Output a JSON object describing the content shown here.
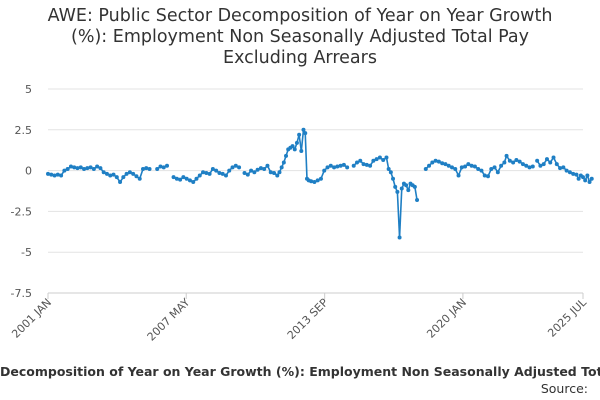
{
  "chart_data": {
    "type": "scatter",
    "title_lines": [
      "AWE: Public Sector Decomposition of Year on Year Growth",
      "(%): Employment Non Seasonally Adjusted Total Pay",
      "Excluding Arrears"
    ],
    "ylim": [
      -7.5,
      5
    ],
    "y_ticks": [
      "5",
      "2.5",
      "0",
      "-2.5",
      "-5",
      "-7.5"
    ],
    "x_ticks": [
      "2001 JAN",
      "2007 MAY",
      "2013 SEP",
      "2020 JAN",
      "2025 JUL"
    ],
    "x_tick_years": [
      2001.0,
      2007.33,
      2013.67,
      2020.0,
      2025.5
    ],
    "xlim": [
      2001.0,
      2025.5
    ],
    "series_color": "#1f7fc4",
    "legend_label": "Decomposition of Year on Year Growth (%): Employment Non Seasonally Adjusted Total",
    "source_label": "Source:",
    "series": [
      {
        "name": "Employment Non Seasonally Adjusted Total Pay Excluding Arrears",
        "points": [
          [
            2001.0,
            -0.2
          ],
          [
            2001.15,
            -0.25
          ],
          [
            2001.3,
            -0.3
          ],
          [
            2001.45,
            -0.25
          ],
          [
            2001.6,
            -0.3
          ],
          [
            2001.75,
            0.0
          ],
          [
            2001.9,
            0.1
          ],
          [
            2002.05,
            0.25
          ],
          [
            2002.2,
            0.2
          ],
          [
            2002.35,
            0.15
          ],
          [
            2002.5,
            0.2
          ],
          [
            2002.65,
            0.1
          ],
          [
            2002.8,
            0.15
          ],
          [
            2002.95,
            0.2
          ],
          [
            2003.1,
            0.1
          ],
          [
            2003.25,
            0.25
          ],
          [
            2003.4,
            0.15
          ],
          [
            2003.55,
            -0.1
          ],
          [
            2003.7,
            -0.2
          ],
          [
            2003.85,
            -0.3
          ],
          [
            2004.0,
            -0.25
          ],
          [
            2004.15,
            -0.4
          ],
          [
            2004.3,
            -0.7
          ],
          [
            2004.45,
            -0.4
          ],
          [
            2004.6,
            -0.2
          ],
          [
            2004.75,
            -0.1
          ],
          [
            2004.9,
            -0.2
          ],
          [
            2005.05,
            -0.35
          ],
          [
            2005.2,
            -0.5
          ],
          [
            2005.35,
            0.1
          ],
          [
            2005.5,
            0.15
          ],
          [
            2005.65,
            0.1
          ],
          [
            2006.0,
            0.1
          ],
          [
            2006.15,
            0.25
          ],
          [
            2006.3,
            0.2
          ],
          [
            2006.45,
            0.3
          ],
          [
            2006.75,
            -0.4
          ],
          [
            2006.9,
            -0.5
          ],
          [
            2007.05,
            -0.55
          ],
          [
            2007.2,
            -0.4
          ],
          [
            2007.35,
            -0.5
          ],
          [
            2007.5,
            -0.6
          ],
          [
            2007.65,
            -0.7
          ],
          [
            2007.8,
            -0.5
          ],
          [
            2007.95,
            -0.3
          ],
          [
            2008.1,
            -0.1
          ],
          [
            2008.25,
            -0.15
          ],
          [
            2008.4,
            -0.2
          ],
          [
            2008.55,
            0.1
          ],
          [
            2008.7,
            0.0
          ],
          [
            2008.85,
            -0.15
          ],
          [
            2009.0,
            -0.2
          ],
          [
            2009.15,
            -0.3
          ],
          [
            2009.3,
            0.0
          ],
          [
            2009.45,
            0.2
          ],
          [
            2009.6,
            0.3
          ],
          [
            2009.75,
            0.2
          ],
          [
            2010.0,
            -0.15
          ],
          [
            2010.15,
            -0.25
          ],
          [
            2010.3,
            0.0
          ],
          [
            2010.45,
            -0.1
          ],
          [
            2010.6,
            0.05
          ],
          [
            2010.75,
            0.15
          ],
          [
            2010.9,
            0.1
          ],
          [
            2011.05,
            0.3
          ],
          [
            2011.2,
            -0.1
          ],
          [
            2011.35,
            -0.15
          ],
          [
            2011.5,
            -0.3
          ],
          [
            2011.6,
            -0.1
          ],
          [
            2011.7,
            0.2
          ],
          [
            2011.8,
            0.5
          ],
          [
            2011.9,
            0.9
          ],
          [
            2012.0,
            1.3
          ],
          [
            2012.1,
            1.4
          ],
          [
            2012.2,
            1.5
          ],
          [
            2012.3,
            1.3
          ],
          [
            2012.4,
            1.7
          ],
          [
            2012.5,
            2.2
          ],
          [
            2012.6,
            1.2
          ],
          [
            2012.7,
            2.5
          ],
          [
            2012.78,
            2.3
          ],
          [
            2012.86,
            -0.5
          ],
          [
            2012.94,
            -0.6
          ],
          [
            2013.05,
            -0.65
          ],
          [
            2013.2,
            -0.7
          ],
          [
            2013.35,
            -0.6
          ],
          [
            2013.5,
            -0.5
          ],
          [
            2013.65,
            0.0
          ],
          [
            2013.8,
            0.2
          ],
          [
            2013.95,
            0.3
          ],
          [
            2014.1,
            0.2
          ],
          [
            2014.25,
            0.25
          ],
          [
            2014.4,
            0.3
          ],
          [
            2014.55,
            0.35
          ],
          [
            2014.7,
            0.2
          ],
          [
            2015.0,
            0.3
          ],
          [
            2015.15,
            0.5
          ],
          [
            2015.3,
            0.6
          ],
          [
            2015.45,
            0.4
          ],
          [
            2015.6,
            0.35
          ],
          [
            2015.75,
            0.3
          ],
          [
            2015.9,
            0.6
          ],
          [
            2016.05,
            0.7
          ],
          [
            2016.2,
            0.8
          ],
          [
            2016.35,
            0.65
          ],
          [
            2016.5,
            0.8
          ],
          [
            2016.6,
            0.1
          ],
          [
            2016.7,
            -0.1
          ],
          [
            2016.8,
            -0.5
          ],
          [
            2016.9,
            -1.0
          ],
          [
            2017.0,
            -1.3
          ],
          [
            2017.1,
            -4.1
          ],
          [
            2017.2,
            -1.1
          ],
          [
            2017.3,
            -0.8
          ],
          [
            2017.4,
            -0.9
          ],
          [
            2017.5,
            -1.2
          ],
          [
            2017.6,
            -0.8
          ],
          [
            2017.7,
            -0.9
          ],
          [
            2017.8,
            -1.0
          ],
          [
            2017.9,
            -1.8
          ],
          [
            2018.3,
            0.1
          ],
          [
            2018.45,
            0.3
          ],
          [
            2018.6,
            0.5
          ],
          [
            2018.75,
            0.6
          ],
          [
            2018.9,
            0.55
          ],
          [
            2019.05,
            0.45
          ],
          [
            2019.2,
            0.4
          ],
          [
            2019.35,
            0.3
          ],
          [
            2019.5,
            0.2
          ],
          [
            2019.65,
            0.1
          ],
          [
            2019.8,
            -0.3
          ],
          [
            2019.95,
            0.2
          ],
          [
            2020.1,
            0.25
          ],
          [
            2020.25,
            0.4
          ],
          [
            2020.4,
            0.3
          ],
          [
            2020.55,
            0.25
          ],
          [
            2020.7,
            0.1
          ],
          [
            2020.85,
            0.0
          ],
          [
            2021.0,
            -0.3
          ],
          [
            2021.15,
            -0.35
          ],
          [
            2021.3,
            0.1
          ],
          [
            2021.45,
            0.2
          ],
          [
            2021.6,
            -0.1
          ],
          [
            2021.75,
            0.3
          ],
          [
            2021.9,
            0.5
          ],
          [
            2022.0,
            0.9
          ],
          [
            2022.15,
            0.6
          ],
          [
            2022.3,
            0.5
          ],
          [
            2022.45,
            0.65
          ],
          [
            2022.6,
            0.55
          ],
          [
            2022.75,
            0.4
          ],
          [
            2022.9,
            0.3
          ],
          [
            2023.05,
            0.2
          ],
          [
            2023.2,
            0.25
          ],
          [
            2023.4,
            0.6
          ],
          [
            2023.55,
            0.3
          ],
          [
            2023.7,
            0.4
          ],
          [
            2023.85,
            0.7
          ],
          [
            2024.0,
            0.5
          ],
          [
            2024.15,
            0.8
          ],
          [
            2024.3,
            0.4
          ],
          [
            2024.45,
            0.15
          ],
          [
            2024.6,
            0.2
          ],
          [
            2024.75,
            0.0
          ],
          [
            2024.9,
            -0.1
          ],
          [
            2025.05,
            -0.2
          ],
          [
            2025.2,
            -0.25
          ],
          [
            2025.3,
            -0.5
          ],
          [
            2025.4,
            -0.3
          ],
          [
            2025.5,
            -0.4
          ],
          [
            2025.6,
            -0.6
          ],
          [
            2025.7,
            -0.3
          ],
          [
            2025.8,
            -0.7
          ],
          [
            2025.9,
            -0.5
          ]
        ]
      }
    ]
  }
}
